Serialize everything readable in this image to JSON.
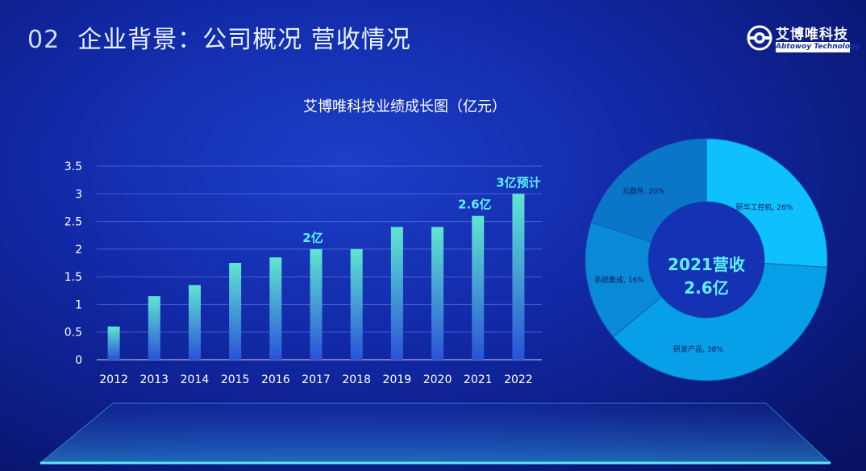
{
  "header": {
    "number": "02",
    "title": "企业背景：公司概况 营收情况"
  },
  "logo": {
    "name_cn": "艾博唯科技",
    "name_en": "Abtowoy Technology"
  },
  "colors": {
    "accent": "#5ef0ff",
    "bar_top": "#5fe6d0",
    "bar_bottom": "#2a52d8",
    "donut": [
      "#0ec0fd",
      "#069fe8",
      "#0a8ad6",
      "#0b76c7"
    ]
  },
  "chart_data": [
    {
      "type": "bar",
      "title": "艾博唯科技业绩成长图（亿元）",
      "categories": [
        "2012",
        "2013",
        "2014",
        "2015",
        "2016",
        "2017",
        "2018",
        "2019",
        "2020",
        "2021",
        "2022"
      ],
      "values": [
        0.6,
        1.15,
        1.35,
        1.75,
        1.85,
        2.0,
        2.0,
        2.4,
        2.4,
        2.6,
        3.0
      ],
      "ylim": [
        0,
        3.5
      ],
      "yticks": [
        "0",
        "0.5",
        "1",
        "1.5",
        "2",
        "2.5",
        "3",
        "3.5"
      ],
      "grid": true,
      "annotations": [
        {
          "category": "2017",
          "text": "2亿"
        },
        {
          "category": "2021",
          "text": "2.6亿"
        },
        {
          "category": "2022",
          "text": "3亿预计"
        }
      ]
    },
    {
      "type": "pie",
      "center_label": [
        "2021营收",
        "2.6亿"
      ],
      "slices": [
        {
          "label": "研华工控机, 26%",
          "value": 26
        },
        {
          "label": "研发产品, 38%",
          "value": 38
        },
        {
          "label": "系统集成, 16%",
          "value": 16
        },
        {
          "label": "元器件, 20%",
          "value": 20
        }
      ]
    }
  ]
}
